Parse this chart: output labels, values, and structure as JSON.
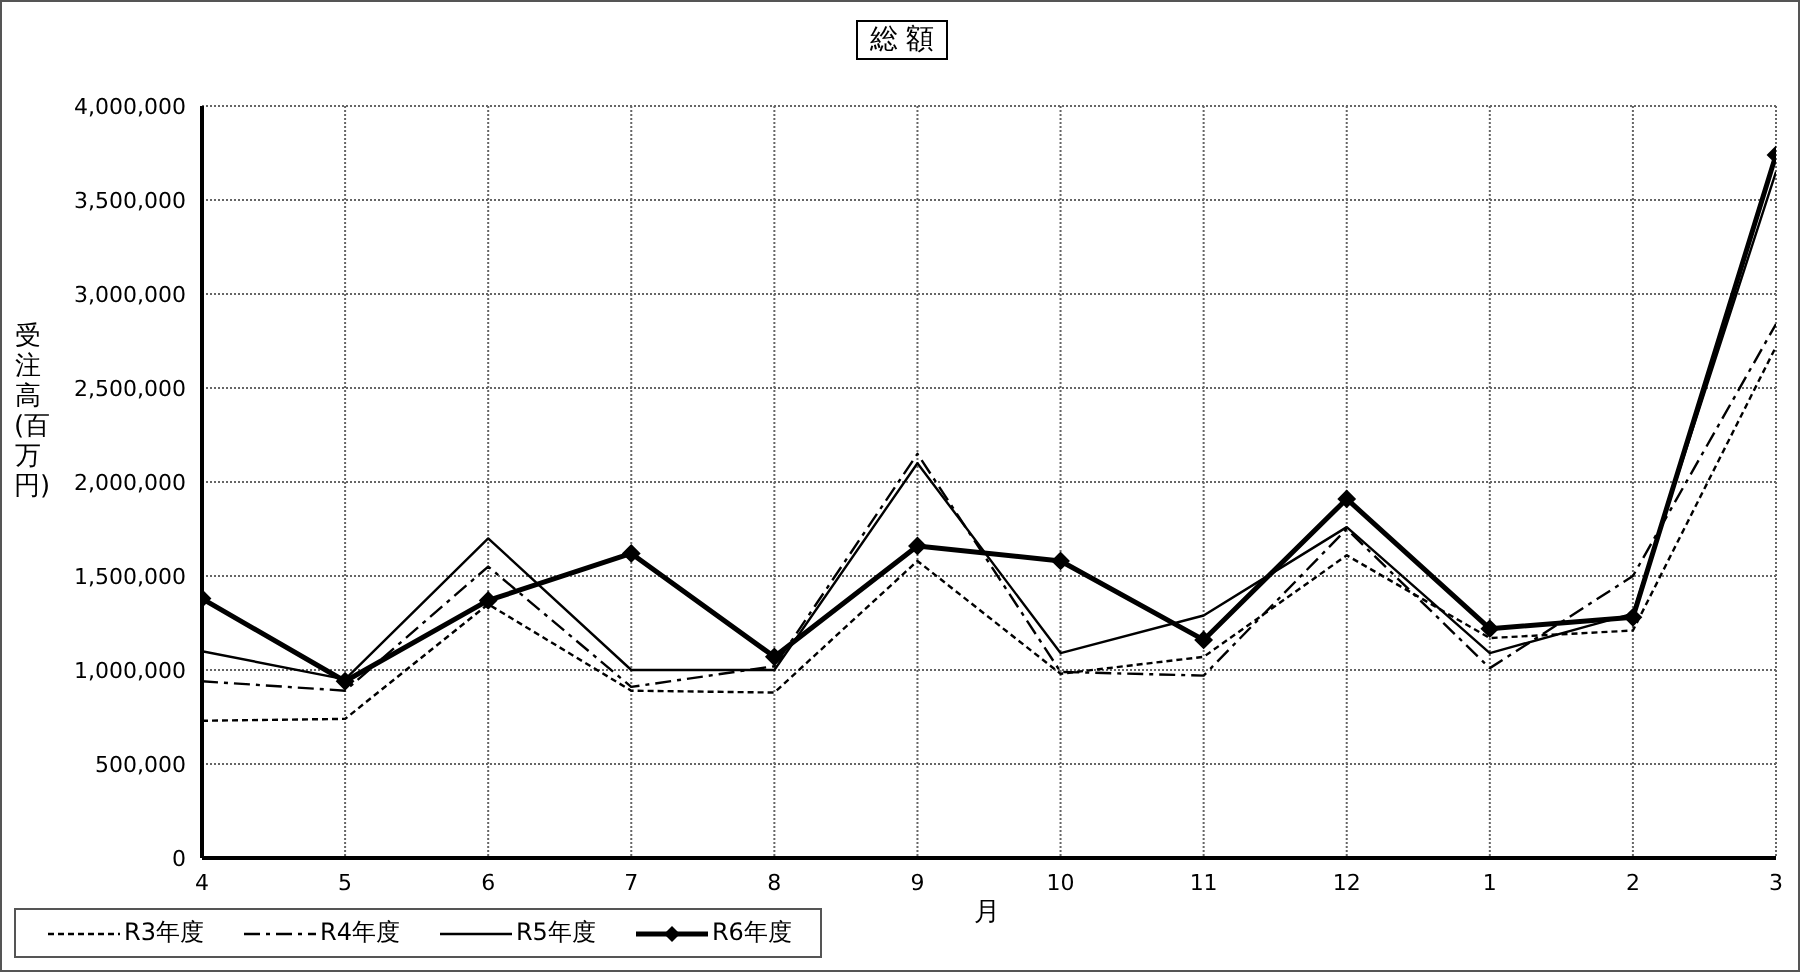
{
  "chart_data": {
    "type": "line",
    "title": "総 額",
    "xlabel": "月",
    "ylabel": "受注高(百万円)",
    "categories": [
      "4",
      "5",
      "6",
      "7",
      "8",
      "9",
      "10",
      "11",
      "12",
      "1",
      "2",
      "3"
    ],
    "series": [
      {
        "name": "R3年度",
        "color": "#000000",
        "line_style": "dotted",
        "marker": "none",
        "values": [
          730000,
          740000,
          1350000,
          890000,
          880000,
          1580000,
          980000,
          1070000,
          1610000,
          1170000,
          1210000,
          2720000
        ]
      },
      {
        "name": "R4年度",
        "color": "#000000",
        "line_style": "dashed",
        "marker": "none",
        "values": [
          940000,
          890000,
          1550000,
          910000,
          1020000,
          2150000,
          990000,
          970000,
          1750000,
          1010000,
          1500000,
          2840000
        ]
      },
      {
        "name": "R5年度",
        "color": "#000000",
        "line_style": "solid",
        "marker": "none",
        "values": [
          1100000,
          950000,
          1700000,
          1000000,
          1000000,
          2100000,
          1090000,
          1290000,
          1760000,
          1090000,
          1300000,
          3650000
        ]
      },
      {
        "name": "R6年度",
        "color": "#000000",
        "line_style": "solid",
        "marker": "diamond",
        "values": [
          1380000,
          940000,
          1370000,
          1620000,
          1070000,
          1660000,
          1580000,
          1160000,
          1910000,
          1220000,
          1280000,
          3740000
        ]
      }
    ],
    "ylim": [
      0,
      4000000
    ],
    "yticks": [
      0,
      {
        "value": 500000,
        "label": "500,000"
      },
      {
        "value": 1000000,
        "label": "1,000,000"
      },
      {
        "value": 1500000,
        "label": "1,500,000"
      },
      {
        "value": 2000000,
        "label": "2,000,000"
      },
      {
        "value": 2500000,
        "label": "2,500,000"
      },
      {
        "value": 3000000,
        "label": "3,000,000"
      },
      {
        "value": 3500000,
        "label": "3,500,000"
      },
      {
        "value": 4000000,
        "label": "4,000,000"
      }
    ],
    "grid": true,
    "legend": "bottom left"
  }
}
